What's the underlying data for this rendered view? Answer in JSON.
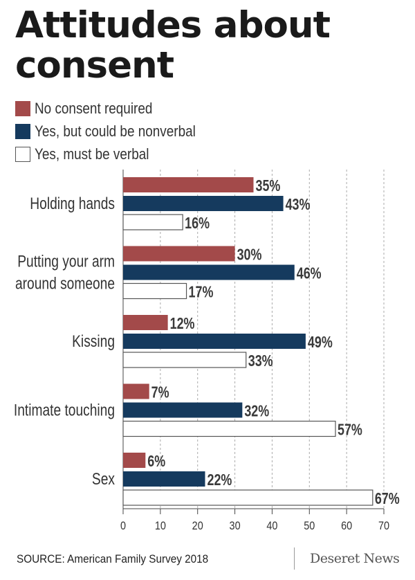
{
  "title": "Attitudes about consent",
  "legend": [
    {
      "label": "No consent required",
      "color": "#a34a4a"
    },
    {
      "label": "Yes, but could be nonverbal",
      "color": "#153a5e"
    },
    {
      "label": "Yes, must be verbal",
      "color": "#ffffff"
    }
  ],
  "chart_data": {
    "type": "bar",
    "orientation": "horizontal",
    "title": "Attitudes about consent",
    "categories": [
      "Holding hands",
      "Putting your arm around someone",
      "Kissing",
      "Intimate touching",
      "Sex"
    ],
    "category_lines": [
      [
        "Holding hands"
      ],
      [
        "Putting your arm",
        "around someone"
      ],
      [
        "Kissing"
      ],
      [
        "Intimate touching"
      ],
      [
        "Sex"
      ]
    ],
    "series": [
      {
        "name": "No consent required",
        "values": [
          35,
          30,
          12,
          7,
          6
        ],
        "labels": [
          "35%",
          "30%",
          "12%",
          "7%",
          "6%"
        ],
        "color": "#a34a4a"
      },
      {
        "name": "Yes, but could be nonverbal",
        "values": [
          43,
          46,
          49,
          32,
          22
        ],
        "labels": [
          "43%",
          "46%",
          "49%",
          "32%",
          "22%"
        ],
        "color": "#153a5e"
      },
      {
        "name": "Yes, must be verbal",
        "values": [
          16,
          17,
          33,
          57,
          67
        ],
        "labels": [
          "16%",
          "17%",
          "33%",
          "57%",
          "67%"
        ],
        "color": "#ffffff"
      }
    ],
    "xlim": [
      0,
      70
    ],
    "ticks": [
      0,
      10,
      20,
      30,
      40,
      50,
      60,
      70
    ],
    "grid": true,
    "legend_position": "top-left"
  },
  "footer": {
    "source": "SOURCE: American Family Survey 2018",
    "logo": "Deseret News"
  }
}
